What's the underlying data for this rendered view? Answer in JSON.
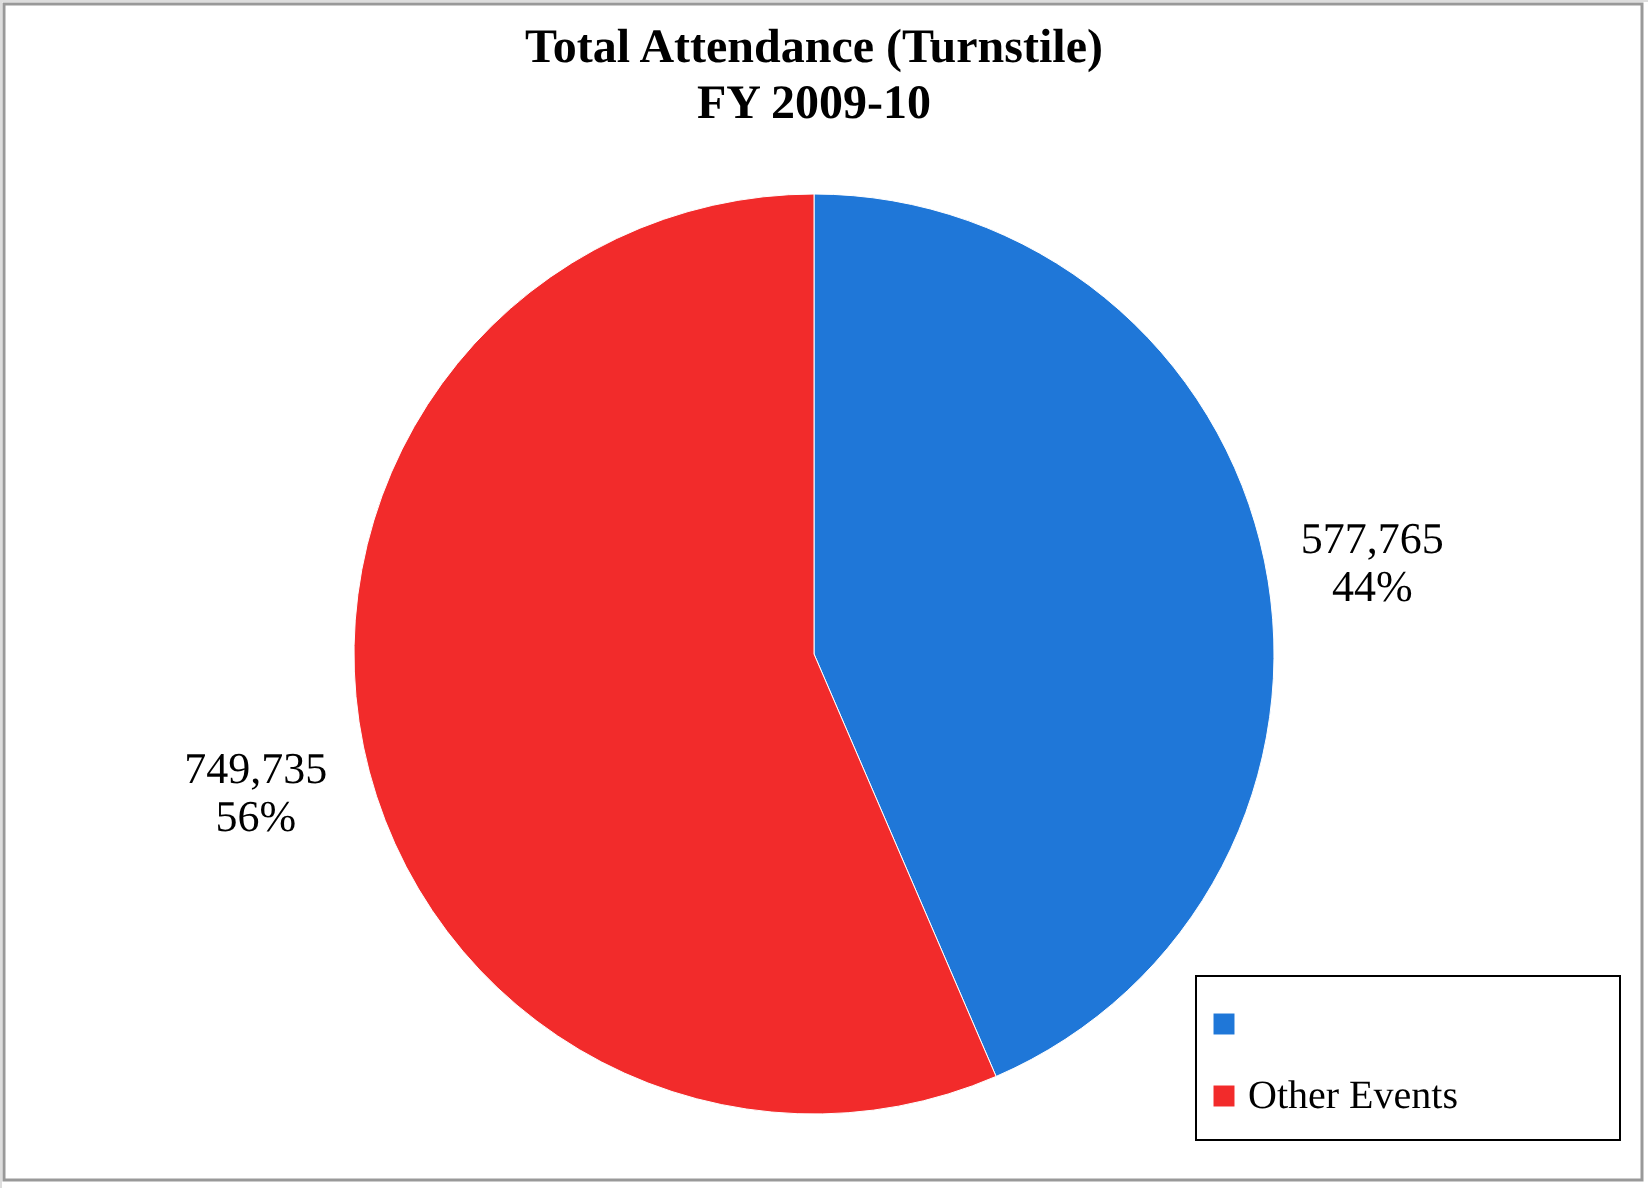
{
  "chart_data": {
    "type": "pie",
    "title": "Total Attendance (Turnstile)",
    "subtitle": "FY 2009-10",
    "categories": [
      null,
      "Other Events"
    ],
    "values": [
      577765,
      749735
    ],
    "value_labels": [
      "577,765\n44%",
      "749,735\n56%"
    ],
    "colors": [
      "#1f77d8",
      "#f22b2b"
    ],
    "legend": "bottom right"
  }
}
